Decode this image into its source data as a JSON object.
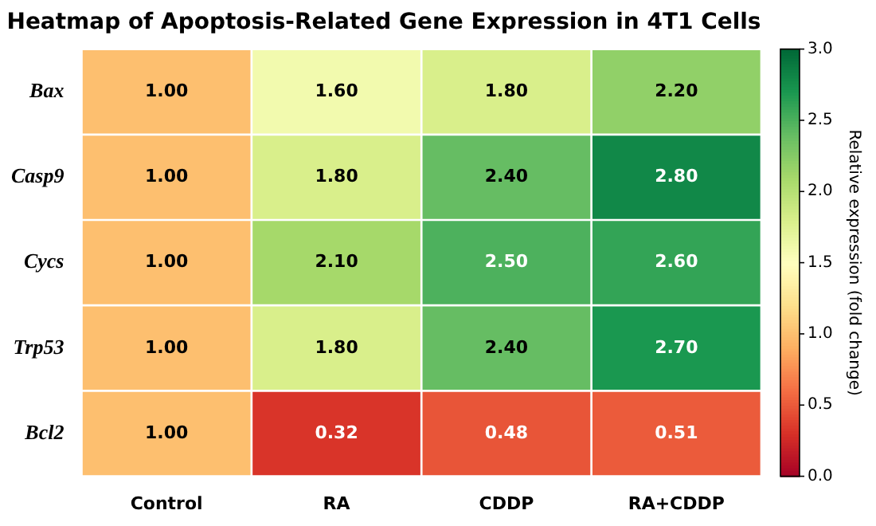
{
  "chart_data": {
    "type": "heatmap",
    "title": "Heatmap of Apoptosis-Related Gene Expression in 4T1 Cells",
    "clabel": "Relative expression (fold change)",
    "categories": [
      "Control",
      "RA",
      "CDDP",
      "RA+CDDP"
    ],
    "y_categories": [
      "Bax",
      "Casp9",
      "Cycs",
      "Trp53",
      "Bcl2"
    ],
    "cells": [
      [
        1.0,
        1.6,
        1.8,
        2.2
      ],
      [
        1.0,
        1.8,
        2.4,
        2.8
      ],
      [
        1.0,
        2.1,
        2.5,
        2.6
      ],
      [
        1.0,
        1.8,
        2.4,
        2.7
      ],
      [
        1.0,
        0.32,
        0.48,
        0.51
      ]
    ],
    "cell_labels": [
      [
        "1.00",
        "1.60",
        "1.80",
        "2.20"
      ],
      [
        "1.00",
        "1.80",
        "2.40",
        "2.80"
      ],
      [
        "1.00",
        "2.10",
        "2.50",
        "2.60"
      ],
      [
        "1.00",
        "1.80",
        "2.40",
        "2.70"
      ],
      [
        "1.00",
        "0.32",
        "0.48",
        "0.51"
      ]
    ],
    "clim": [
      0,
      3
    ],
    "cticks": [
      {
        "value": 0,
        "label": "0.0"
      },
      {
        "value": 0.5,
        "label": "0.5"
      },
      {
        "value": 1,
        "label": "1.0"
      },
      {
        "value": 1.5,
        "label": "1.5"
      },
      {
        "value": 2,
        "label": "2.0"
      },
      {
        "value": 2.5,
        "label": "2.5"
      },
      {
        "value": 3,
        "label": "3.0"
      }
    ]
  }
}
